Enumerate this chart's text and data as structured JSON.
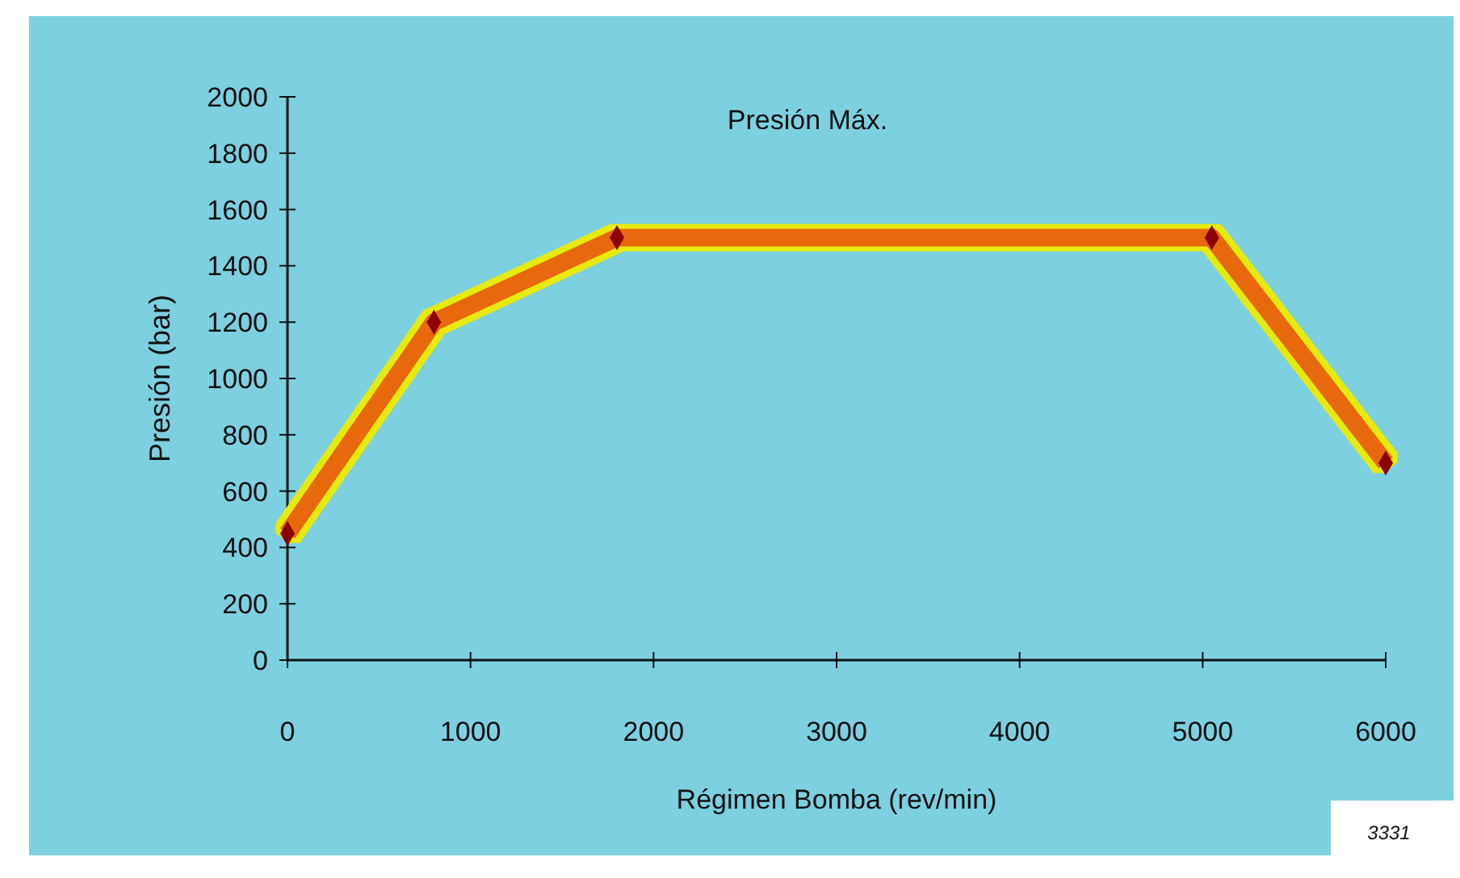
{
  "chart_data": {
    "type": "line",
    "title": "Presión Máx.",
    "xlabel": "Régimen Bomba (rev/min)",
    "ylabel": "Presión (bar)",
    "x": [
      0,
      800,
      1800,
      5050,
      6000
    ],
    "series": [
      {
        "color": "#e8680c",
        "values": [
          450,
          1200,
          1500,
          1500,
          700
        ]
      }
    ],
    "xlim": [
      0,
      6000
    ],
    "xticks": [
      0,
      1000,
      2000,
      3000,
      4000,
      5000,
      6000
    ],
    "ylim": [
      0,
      2000
    ],
    "yticks": [
      0,
      200,
      400,
      600,
      800,
      1000,
      1200,
      1400,
      1600,
      1800,
      2000
    ],
    "marker": "diamond",
    "grid": false,
    "annotations": [
      "3331"
    ]
  }
}
